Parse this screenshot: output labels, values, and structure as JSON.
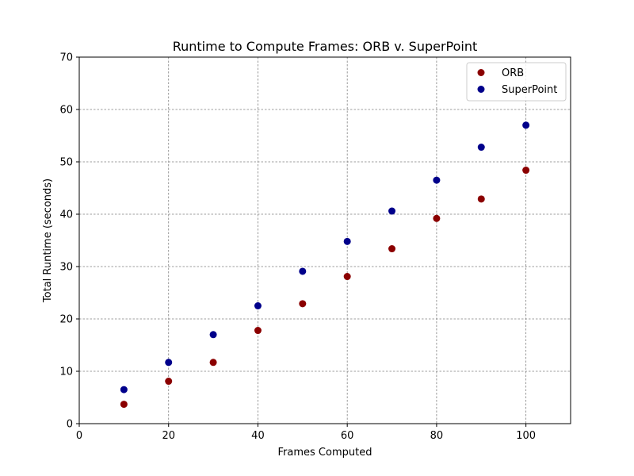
{
  "chart_data": {
    "type": "scatter",
    "title": "Runtime to Compute Frames: ORB v. SuperPoint",
    "xlabel": "Frames Computed",
    "ylabel": "Total Runtime (seconds)",
    "xlim": [
      0,
      110
    ],
    "ylim": [
      0,
      70
    ],
    "xticks": [
      0,
      20,
      40,
      60,
      80,
      100
    ],
    "yticks": [
      0,
      10,
      20,
      30,
      40,
      50,
      60,
      70
    ],
    "grid": true,
    "legend_position": "top-right",
    "x": [
      10,
      20,
      30,
      40,
      50,
      60,
      70,
      80,
      90,
      100
    ],
    "series": [
      {
        "name": "ORB",
        "color": "#8b0000",
        "values": [
          3.7,
          8.1,
          11.7,
          17.8,
          22.9,
          28.1,
          33.4,
          39.2,
          42.9,
          48.4
        ]
      },
      {
        "name": "SuperPoint",
        "color": "#00008b",
        "values": [
          6.5,
          11.7,
          17.0,
          22.5,
          29.1,
          34.8,
          40.6,
          46.5,
          52.8,
          57.0
        ]
      }
    ]
  }
}
